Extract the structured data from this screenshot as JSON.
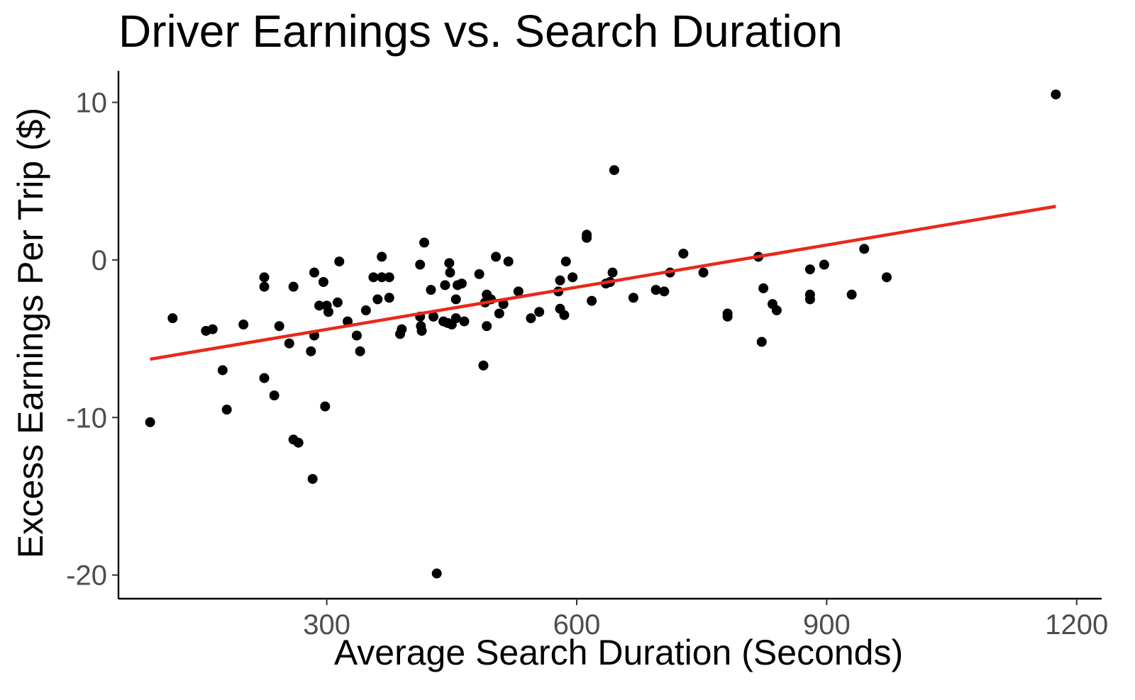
{
  "chart_data": {
    "type": "scatter",
    "title": "Driver Earnings vs. Search Duration",
    "xlabel": "Average Search Duration (Seconds)",
    "ylabel": "Excess Earnings Per Trip ($)",
    "xlim": [
      50,
      1230
    ],
    "ylim": [
      -21.5,
      12
    ],
    "xticks": [
      300,
      600,
      900,
      1200
    ],
    "yticks": [
      10,
      0,
      -10,
      -20
    ],
    "xtick_labels": [
      "300",
      "600",
      "900",
      "1200"
    ],
    "ytick_labels": [
      "10",
      "0",
      "-10",
      "-20"
    ],
    "grid": false,
    "legend": "none",
    "colors": {
      "points": "#000000",
      "fit_line": "#e8281a"
    },
    "fit_line": {
      "x": [
        88,
        1175
      ],
      "y": [
        -6.3,
        3.4
      ]
    },
    "points": [
      {
        "x": 88,
        "y": -10.3
      },
      {
        "x": 115,
        "y": -3.7
      },
      {
        "x": 155,
        "y": -4.5
      },
      {
        "x": 163,
        "y": -4.4
      },
      {
        "x": 175,
        "y": -7.0
      },
      {
        "x": 180,
        "y": -9.5
      },
      {
        "x": 200,
        "y": -4.1
      },
      {
        "x": 225,
        "y": -7.5
      },
      {
        "x": 225,
        "y": -1.1
      },
      {
        "x": 225,
        "y": -1.7
      },
      {
        "x": 237,
        "y": -8.6
      },
      {
        "x": 243,
        "y": -4.2
      },
      {
        "x": 255,
        "y": -5.3
      },
      {
        "x": 260,
        "y": -11.4
      },
      {
        "x": 260,
        "y": -1.7
      },
      {
        "x": 266,
        "y": -11.6
      },
      {
        "x": 281,
        "y": -5.8
      },
      {
        "x": 283,
        "y": -13.9
      },
      {
        "x": 285,
        "y": -0.8
      },
      {
        "x": 285,
        "y": -4.8
      },
      {
        "x": 291,
        "y": -2.9
      },
      {
        "x": 296,
        "y": -1.4
      },
      {
        "x": 298,
        "y": -9.3
      },
      {
        "x": 300,
        "y": -2.9
      },
      {
        "x": 302,
        "y": -3.3
      },
      {
        "x": 313,
        "y": -2.7
      },
      {
        "x": 315,
        "y": -0.1
      },
      {
        "x": 325,
        "y": -3.9
      },
      {
        "x": 336,
        "y": -4.8
      },
      {
        "x": 340,
        "y": -5.8
      },
      {
        "x": 347,
        "y": -3.2
      },
      {
        "x": 356,
        "y": -1.1
      },
      {
        "x": 361,
        "y": -2.5
      },
      {
        "x": 366,
        "y": 0.2
      },
      {
        "x": 366,
        "y": -1.1
      },
      {
        "x": 375,
        "y": -1.1
      },
      {
        "x": 375,
        "y": -2.4
      },
      {
        "x": 388,
        "y": -4.7
      },
      {
        "x": 390,
        "y": -4.4
      },
      {
        "x": 412,
        "y": -0.3
      },
      {
        "x": 412,
        "y": -3.6
      },
      {
        "x": 413,
        "y": -4.2
      },
      {
        "x": 414,
        "y": -4.5
      },
      {
        "x": 417,
        "y": 1.1
      },
      {
        "x": 425,
        "y": -1.9
      },
      {
        "x": 428,
        "y": -3.6
      },
      {
        "x": 432,
        "y": -19.9
      },
      {
        "x": 440,
        "y": -3.9
      },
      {
        "x": 442,
        "y": -1.6
      },
      {
        "x": 445,
        "y": -4.0
      },
      {
        "x": 447,
        "y": -0.2
      },
      {
        "x": 448,
        "y": -0.8
      },
      {
        "x": 450,
        "y": -4.1
      },
      {
        "x": 455,
        "y": -2.5
      },
      {
        "x": 455,
        "y": -3.7
      },
      {
        "x": 457,
        "y": -1.6
      },
      {
        "x": 462,
        "y": -1.5
      },
      {
        "x": 465,
        "y": -3.9
      },
      {
        "x": 483,
        "y": -0.9
      },
      {
        "x": 488,
        "y": -6.7
      },
      {
        "x": 490,
        "y": -2.7
      },
      {
        "x": 492,
        "y": -2.2
      },
      {
        "x": 492,
        "y": -4.2
      },
      {
        "x": 497,
        "y": -2.5
      },
      {
        "x": 503,
        "y": 0.2
      },
      {
        "x": 507,
        "y": -3.4
      },
      {
        "x": 512,
        "y": -2.8
      },
      {
        "x": 518,
        "y": -0.1
      },
      {
        "x": 530,
        "y": -2.0
      },
      {
        "x": 545,
        "y": -3.7
      },
      {
        "x": 555,
        "y": -3.3
      },
      {
        "x": 578,
        "y": -2.0
      },
      {
        "x": 580,
        "y": -1.3
      },
      {
        "x": 580,
        "y": -3.1
      },
      {
        "x": 585,
        "y": -3.5
      },
      {
        "x": 587,
        "y": -0.1
      },
      {
        "x": 595,
        "y": -1.1
      },
      {
        "x": 612,
        "y": 1.4
      },
      {
        "x": 612,
        "y": 1.6
      },
      {
        "x": 618,
        "y": -2.6
      },
      {
        "x": 635,
        "y": -1.5
      },
      {
        "x": 640,
        "y": -1.4
      },
      {
        "x": 643,
        "y": -0.8
      },
      {
        "x": 645,
        "y": 5.7
      },
      {
        "x": 668,
        "y": -2.4
      },
      {
        "x": 695,
        "y": -1.9
      },
      {
        "x": 705,
        "y": -2.0
      },
      {
        "x": 712,
        "y": -0.8
      },
      {
        "x": 728,
        "y": 0.4
      },
      {
        "x": 752,
        "y": -0.8
      },
      {
        "x": 781,
        "y": -3.4
      },
      {
        "x": 781,
        "y": -3.6
      },
      {
        "x": 818,
        "y": 0.2
      },
      {
        "x": 822,
        "y": -5.2
      },
      {
        "x": 824,
        "y": -1.8
      },
      {
        "x": 835,
        "y": -2.8
      },
      {
        "x": 840,
        "y": -3.2
      },
      {
        "x": 880,
        "y": -0.6
      },
      {
        "x": 880,
        "y": -2.2
      },
      {
        "x": 880,
        "y": -2.5
      },
      {
        "x": 897,
        "y": -0.3
      },
      {
        "x": 930,
        "y": -2.2
      },
      {
        "x": 945,
        "y": 0.7
      },
      {
        "x": 972,
        "y": -1.1
      },
      {
        "x": 1175,
        "y": 10.5
      }
    ]
  }
}
